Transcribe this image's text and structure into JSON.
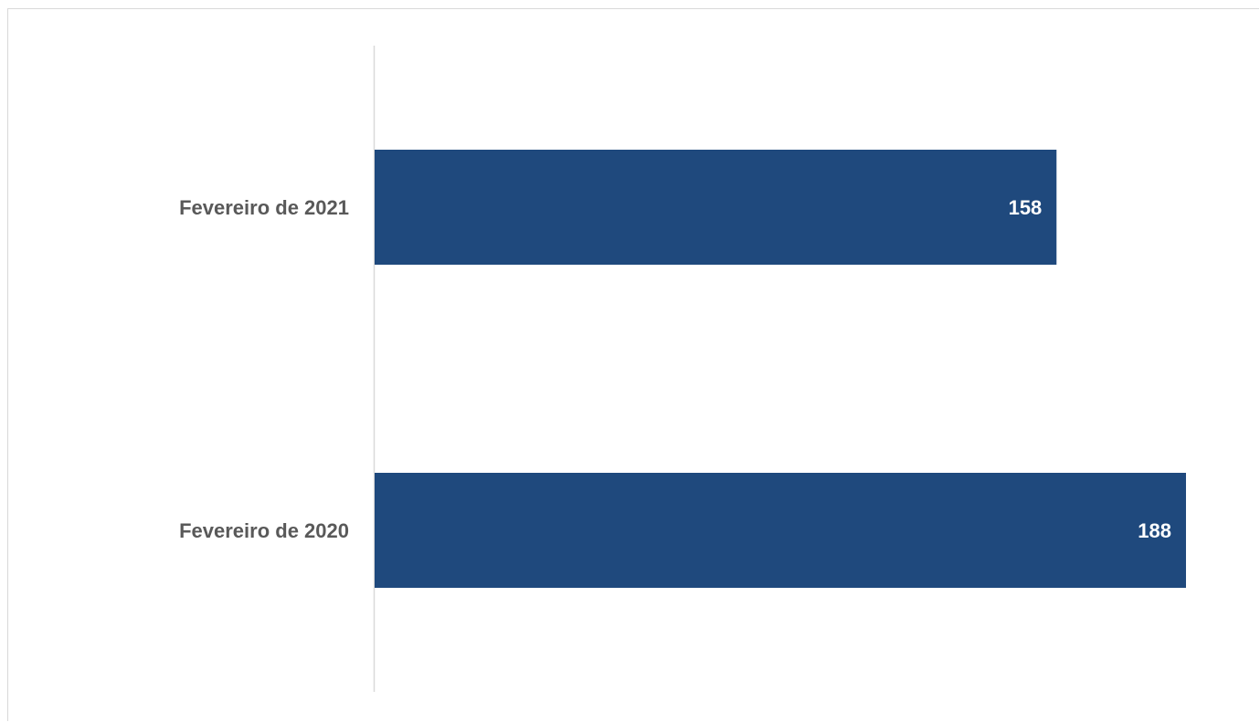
{
  "chart_data": {
    "type": "bar",
    "orientation": "horizontal",
    "categories": [
      "Fevereiro de 2021",
      "Fevereiro de 2020"
    ],
    "values": [
      158,
      188
    ],
    "title": "",
    "xlabel": "",
    "ylabel": "",
    "xlim": [
      0,
      188
    ],
    "grid": false,
    "data_labels": true,
    "bar_color": "#1f497d",
    "axis_color": "#d9d9d9",
    "label_color": "#595959"
  }
}
